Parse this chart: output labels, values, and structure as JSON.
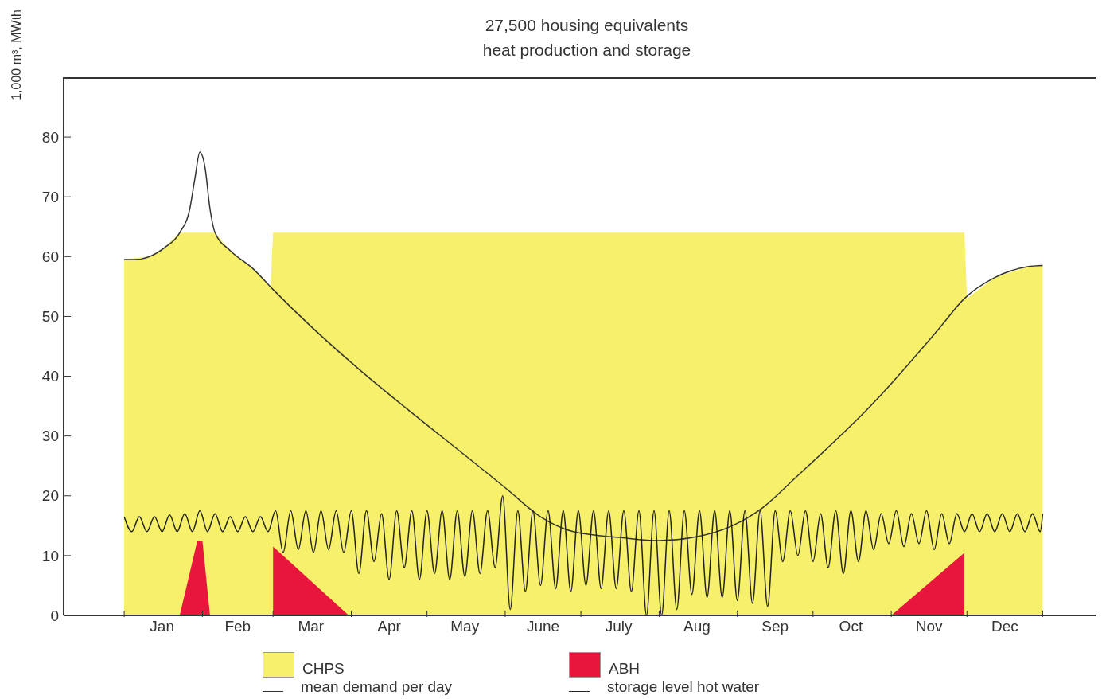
{
  "chart_data": {
    "type": "area",
    "title": "27,500 housing equivalents",
    "subtitle": "heat production and storage",
    "ylabel": "1,000 m³, MWth",
    "xlim": [
      "2000-12-08",
      "2002-01-21"
    ],
    "ylim": [
      0,
      90
    ],
    "xticks": [
      {
        "value": "--01-01",
        "label": null
      },
      {
        "value": "--01-16",
        "label": "Jan"
      },
      {
        "value": "--02-01",
        "label": null
      },
      {
        "value": "--02-15",
        "label": "Feb"
      },
      {
        "value": "--03-01",
        "label": null
      },
      {
        "value": "--03-16",
        "label": "Mar"
      },
      {
        "value": "--04-01",
        "label": null
      },
      {
        "value": "--04-16",
        "label": "Apr"
      },
      {
        "value": "--05-01",
        "label": null
      },
      {
        "value": "--05-16",
        "label": "May"
      },
      {
        "value": "--06-01",
        "label": null
      },
      {
        "value": "--06-16",
        "label": "June"
      },
      {
        "value": "--07-01",
        "label": null
      },
      {
        "value": "--07-16",
        "label": "July"
      },
      {
        "value": "--08-01",
        "label": null
      },
      {
        "value": "--08-16",
        "label": "Aug"
      },
      {
        "value": "--09-01",
        "label": null
      },
      {
        "value": "--09-16",
        "label": "Sep"
      },
      {
        "value": "--10-01",
        "label": null
      },
      {
        "value": "--10-16",
        "label": "Oct"
      },
      {
        "value": "--11-01",
        "label": null
      },
      {
        "value": "--11-16",
        "label": "Nov"
      },
      {
        "value": "--12-01",
        "label": null
      },
      {
        "value": "--12-16",
        "label": "Dec"
      },
      {
        "value": "--12-31",
        "label": null
      }
    ],
    "yticks": [
      0,
      10,
      20,
      30,
      40,
      50,
      60,
      70,
      80
    ],
    "legend": "bottom",
    "series": [
      {
        "name": "CHPS",
        "color": "#f6f06a",
        "x": [
          "--01-01",
          "--01-11",
          "--01-17",
          "--01-23",
          "--02-06",
          "--02-12",
          "--02-21",
          "--02-28",
          "--03-01",
          "--11-30",
          "--12-01",
          "--12-12",
          "--12-25",
          "--12-31"
        ],
        "values": [
          59.5,
          60,
          61.5,
          64,
          64,
          61,
          58,
          55,
          64,
          64,
          53,
          56.5,
          58.3,
          58.5
        ]
      },
      {
        "name": "ABH",
        "color": "#e8163c",
        "x": [
          "--01-23",
          "--01-30",
          "--02-01",
          "--02-04",
          "--02-15",
          "--03-01",
          "--03-31",
          "--07-20",
          "--11-01",
          "--11-30"
        ],
        "values": [
          0,
          12.5,
          12.5,
          0,
          null,
          11.5,
          0,
          null,
          0,
          10.5
        ]
      },
      {
        "name": "mean demand per day",
        "type": "line",
        "color": "#333333",
        "x": [
          "--01-01",
          "--01-05",
          "--01-11",
          "--01-17",
          "--01-23",
          "--01-27",
          "--01-29",
          "--01-31",
          "--02-02",
          "--02-04",
          "--02-06",
          "--02-12",
          "--02-21",
          "--03-01",
          "--06-02",
          "--06-15",
          "--06-28",
          "--07-17",
          "--08-01",
          "--08-14",
          "--08-30",
          "--09-11",
          "--09-24",
          "--10-26",
          "--11-20",
          "--11-30",
          "--12-12",
          "--12-25",
          "--12-31"
        ],
        "values": [
          59.5,
          59.5,
          60,
          61.5,
          64,
          68,
          73,
          77.5,
          75,
          68,
          64,
          61,
          58,
          54.5,
          21,
          16.5,
          14,
          13,
          12.5,
          13,
          15,
          18,
          23,
          36,
          48,
          53,
          56.5,
          58.3,
          58.5
        ]
      },
      {
        "name": "storage level hot water",
        "type": "line",
        "color": "#222222",
        "x": [
          "--01-01",
          "--01-04",
          "--01-07",
          "--01-10",
          "--01-13",
          "--01-16",
          "--01-19",
          "--01-22",
          "--01-25",
          "--01-28",
          "--01-31",
          "--02-03",
          "--02-06",
          "--02-09",
          "--02-12",
          "--02-15",
          "--02-18",
          "--02-21",
          "--02-24",
          "--02-27",
          "--03-02",
          "--03-05",
          "--03-08",
          "--03-11",
          "--03-14",
          "--03-17",
          "--03-20",
          "--03-23",
          "--03-26",
          "--03-29",
          "--04-01",
          "--04-04",
          "--04-07",
          "--04-10",
          "--04-13",
          "--04-16",
          "--04-19",
          "--04-22",
          "--04-25",
          "--04-28",
          "--05-01",
          "--05-04",
          "--05-07",
          "--05-10",
          "--05-13",
          "--05-16",
          "--05-19",
          "--05-22",
          "--05-25",
          "--05-28",
          "--05-31",
          "--06-03",
          "--06-06",
          "--06-09",
          "--06-12",
          "--06-15",
          "--06-18",
          "--06-21",
          "--06-24",
          "--06-27",
          "--06-30",
          "--07-03",
          "--07-06",
          "--07-09",
          "--07-12",
          "--07-15",
          "--07-18",
          "--07-21",
          "--07-24",
          "--07-27",
          "--07-30",
          "--08-02",
          "--08-05",
          "--08-08",
          "--08-11",
          "--08-14",
          "--08-17",
          "--08-20",
          "--08-23",
          "--08-26",
          "--08-29",
          "--09-01",
          "--09-04",
          "--09-07",
          "--09-10",
          "--09-13",
          "--09-16",
          "--09-19",
          "--09-22",
          "--09-25",
          "--09-28",
          "--10-01",
          "--10-04",
          "--10-07",
          "--10-10",
          "--10-13",
          "--10-16",
          "--10-19",
          "--10-22",
          "--10-25",
          "--10-28",
          "--10-31",
          "--11-03",
          "--11-06",
          "--11-09",
          "--11-12",
          "--11-15",
          "--11-18",
          "--11-21",
          "--11-24",
          "--11-27",
          "--11-30",
          "--12-03",
          "--12-06",
          "--12-09",
          "--12-12",
          "--12-15",
          "--12-18",
          "--12-21",
          "--12-24",
          "--12-27",
          "--12-30",
          "--12-31"
        ],
        "values": [
          16.5,
          14,
          16.5,
          14,
          16.5,
          14,
          16.8,
          14,
          17,
          14,
          17.5,
          14,
          17,
          14,
          16.5,
          14,
          16.5,
          14,
          16.5,
          14,
          17.5,
          10.5,
          17.5,
          11,
          17.5,
          10.5,
          17.5,
          11,
          17.5,
          10.5,
          17.5,
          7,
          17.5,
          9,
          17,
          6,
          17.5,
          8,
          17.5,
          6,
          17.5,
          7,
          17.5,
          6,
          17.5,
          6.5,
          17.5,
          7,
          17.5,
          8,
          20,
          1,
          17.5,
          4,
          17.5,
          5,
          17.5,
          4.5,
          17.5,
          4,
          17.5,
          5,
          17.5,
          4.5,
          17.5,
          4.5,
          17.5,
          4,
          17.5,
          0,
          17.5,
          0,
          17.5,
          1,
          17.5,
          3.5,
          17.5,
          3,
          17.5,
          3,
          17.5,
          2.5,
          17.5,
          2,
          17.5,
          1.5,
          17.5,
          9,
          17.5,
          10,
          17.5,
          9,
          17,
          8,
          17.5,
          7,
          17.5,
          9,
          17.5,
          11,
          17,
          12,
          17.5,
          11.5,
          17,
          12,
          17.5,
          11,
          17,
          12,
          17,
          14,
          17,
          14,
          17,
          14,
          17,
          14,
          17,
          14,
          17,
          14,
          17
        ]
      }
    ]
  }
}
